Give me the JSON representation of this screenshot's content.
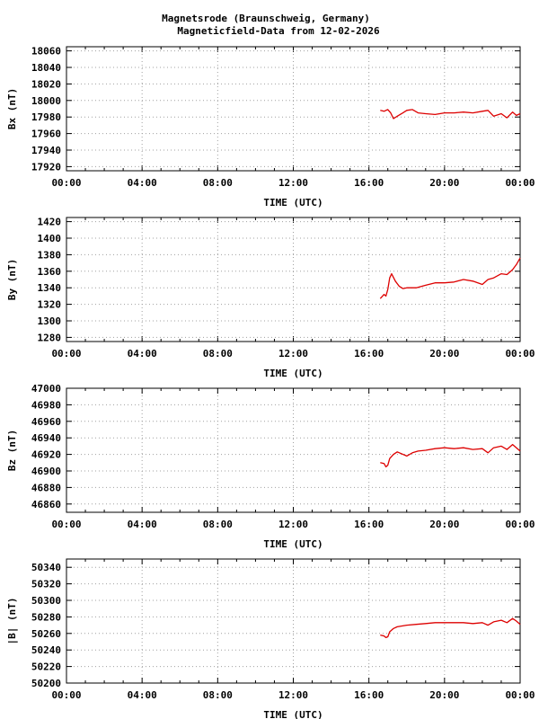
{
  "title_line1": "Magnetsrode (Braunschweig, Germany)",
  "title_line2": "Magneticfield-Data from 12-02-2026",
  "colors": {
    "series": "#dd0000",
    "grid": "#a0a0a0",
    "axis": "#000000",
    "background": "#ffffff"
  },
  "chart_data": [
    {
      "type": "line",
      "xlabel": "TIME (UTC)",
      "ylabel": "Bx (nT)",
      "x_ticks": [
        "00:00",
        "04:00",
        "08:00",
        "12:00",
        "16:00",
        "20:00",
        "00:00"
      ],
      "x_range_hours": [
        0,
        24
      ],
      "ylim": [
        17915,
        18065
      ],
      "y_ticks": [
        17920,
        17940,
        17960,
        17980,
        18000,
        18020,
        18040,
        18060
      ],
      "grid": true,
      "x": [
        16.6,
        16.8,
        17.0,
        17.15,
        17.3,
        17.5,
        17.8,
        18.0,
        18.3,
        18.6,
        19.0,
        19.5,
        20.0,
        20.5,
        21.0,
        21.5,
        22.0,
        22.3,
        22.6,
        23.0,
        23.3,
        23.6,
        23.8,
        24.0
      ],
      "y": [
        17988,
        17987,
        17989,
        17985,
        17978,
        17981,
        17985,
        17988,
        17989,
        17985,
        17984,
        17983,
        17985,
        17985,
        17986,
        17985,
        17987,
        17988,
        17981,
        17984,
        17979,
        17986,
        17982,
        17984
      ]
    },
    {
      "type": "line",
      "xlabel": "TIME (UTC)",
      "ylabel": "By (nT)",
      "x_ticks": [
        "00:00",
        "04:00",
        "08:00",
        "12:00",
        "16:00",
        "20:00",
        "00:00"
      ],
      "x_range_hours": [
        0,
        24
      ],
      "ylim": [
        1275,
        1425
      ],
      "y_ticks": [
        1280,
        1300,
        1320,
        1340,
        1360,
        1380,
        1400,
        1420
      ],
      "grid": true,
      "x": [
        16.6,
        16.8,
        16.9,
        17.0,
        17.1,
        17.2,
        17.4,
        17.6,
        17.8,
        18.0,
        18.5,
        19.0,
        19.5,
        20.0,
        20.5,
        21.0,
        21.5,
        22.0,
        22.3,
        22.6,
        23.0,
        23.3,
        23.6,
        23.8,
        24.0
      ],
      "y": [
        1327,
        1332,
        1330,
        1338,
        1352,
        1357,
        1348,
        1342,
        1339,
        1340,
        1340,
        1343,
        1346,
        1346,
        1347,
        1350,
        1348,
        1344,
        1350,
        1352,
        1357,
        1356,
        1362,
        1368,
        1376
      ]
    },
    {
      "type": "line",
      "xlabel": "TIME (UTC)",
      "ylabel": "Bz (nT)",
      "x_ticks": [
        "00:00",
        "04:00",
        "08:00",
        "12:00",
        "16:00",
        "20:00",
        "00:00"
      ],
      "x_range_hours": [
        0,
        24
      ],
      "ylim": [
        46850,
        47000
      ],
      "y_ticks": [
        46860,
        46880,
        46900,
        46920,
        46940,
        46960,
        46980,
        47000
      ],
      "grid": true,
      "x": [
        16.6,
        16.8,
        16.9,
        17.0,
        17.1,
        17.3,
        17.5,
        18.0,
        18.3,
        18.6,
        19.0,
        19.5,
        20.0,
        20.5,
        21.0,
        21.5,
        22.0,
        22.3,
        22.6,
        23.0,
        23.3,
        23.6,
        23.8,
        24.0
      ],
      "y": [
        46910,
        46909,
        46905,
        46907,
        46915,
        46920,
        46923,
        46918,
        46922,
        46924,
        46925,
        46927,
        46928,
        46927,
        46928,
        46926,
        46927,
        46922,
        46928,
        46930,
        46926,
        46932,
        46928,
        46924
      ]
    },
    {
      "type": "line",
      "xlabel": "TIME (UTC)",
      "ylabel": "|B| (nT)",
      "x_ticks": [
        "00:00",
        "04:00",
        "08:00",
        "12:00",
        "16:00",
        "20:00",
        "00:00"
      ],
      "x_range_hours": [
        0,
        24
      ],
      "ylim": [
        50200,
        50350
      ],
      "y_ticks": [
        50200,
        50220,
        50240,
        50260,
        50280,
        50300,
        50320,
        50340
      ],
      "grid": true,
      "x": [
        16.6,
        16.8,
        16.9,
        17.0,
        17.1,
        17.3,
        17.5,
        18.0,
        18.5,
        19.0,
        19.5,
        20.0,
        20.5,
        21.0,
        21.5,
        22.0,
        22.3,
        22.6,
        23.0,
        23.3,
        23.6,
        23.8,
        24.0
      ],
      "y": [
        50258,
        50257,
        50255,
        50256,
        50262,
        50266,
        50268,
        50270,
        50271,
        50272,
        50273,
        50273,
        50273,
        50273,
        50272,
        50273,
        50270,
        50274,
        50276,
        50273,
        50278,
        50275,
        50271
      ]
    }
  ]
}
